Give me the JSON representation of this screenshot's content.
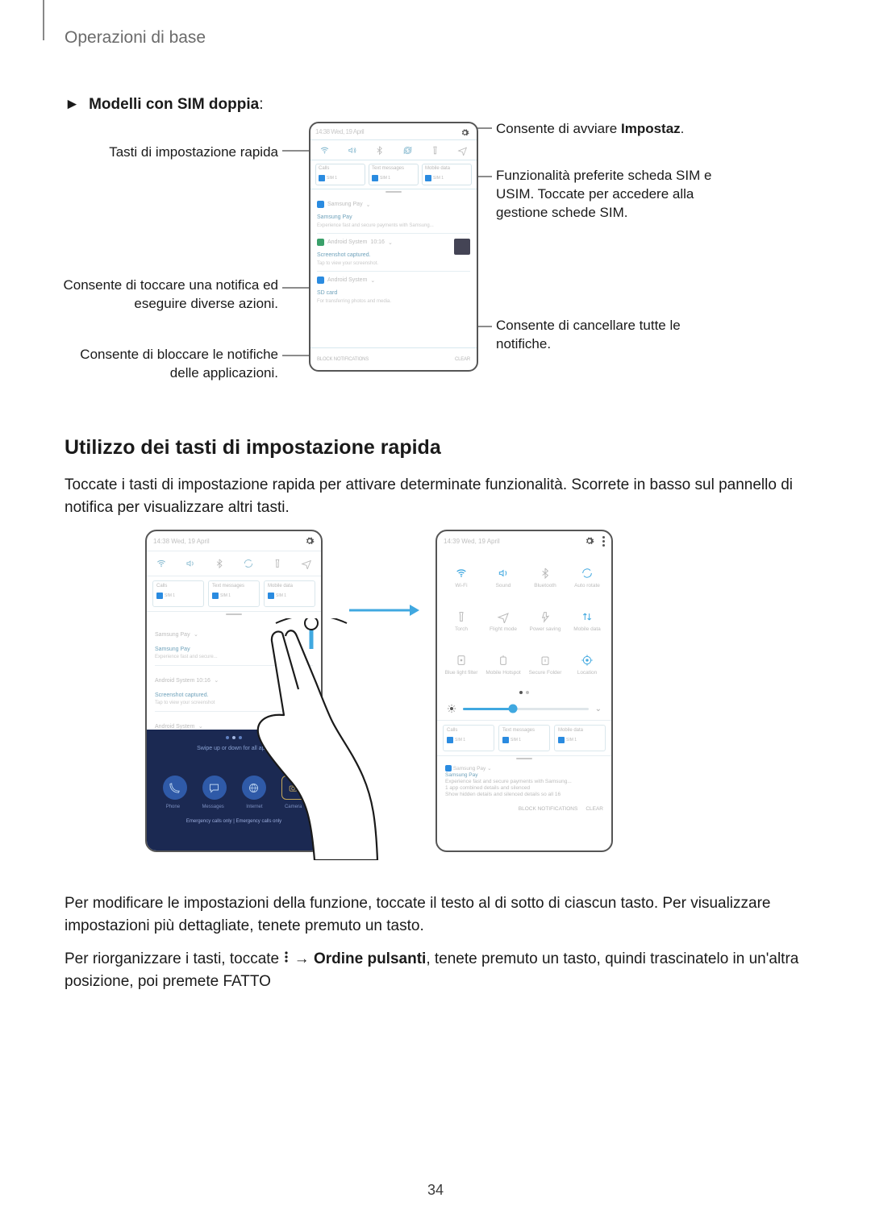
{
  "header": "Operazioni di base",
  "subhead_marker": "►",
  "subhead_bold": "Modelli con SIM doppia",
  "subhead_colon": ":",
  "diagram1": {
    "callouts": {
      "qs_keys": "Tasti di impostazione rapida",
      "tap_notif_1": "Consente di toccare una notifica ed",
      "tap_notif_2": "eseguire diverse azioni.",
      "block_1": "Consente di bloccare le notifiche",
      "block_2": "delle applicazioni.",
      "start_settings_1": "Consente di avviare ",
      "start_settings_bold": "Impostaz",
      "start_settings_dot": ".",
      "pref_sim_1": "Funzionalità preferite scheda SIM e",
      "pref_sim_2": "USIM. Toccate per accedere alla",
      "pref_sim_3": "gestione schede SIM.",
      "clear_1": "Consente di cancellare tutte le",
      "clear_2": "notifiche."
    },
    "phone": {
      "time": "14:38",
      "date": "Wed, 19 April",
      "sim": [
        {
          "label": "Calls",
          "sub": "SIM 1"
        },
        {
          "label": "Text messages",
          "sub": "SIM 1"
        },
        {
          "label": "Mobile data",
          "sub": "SIM 1"
        }
      ],
      "notifs": [
        {
          "app": "Samsung Pay",
          "title": "Samsung Pay",
          "sub": "Experience fast and secure payments with Samsung..."
        },
        {
          "app": "Android System",
          "title": "Screenshot captured.",
          "sub": "Tap to view your screenshot."
        },
        {
          "app": "Android System",
          "title": "SD card",
          "sub": "For transferring photos and media."
        }
      ],
      "footer_left": "BLOCK NOTIFICATIONS",
      "footer_right": "CLEAR"
    }
  },
  "h2": "Utilizzo dei tasti di impostazione rapida",
  "p1": "Toccate i tasti di impostazione rapida per attivare determinate funzionalità. Scorrete in basso sul pannello di notifica per visualizzare altri tasti.",
  "diagram2": {
    "left_phone": {
      "time": "14:38",
      "date": "Wed, 19 April",
      "sim": [
        {
          "label": "Calls",
          "sub": "SIM 1"
        },
        {
          "label": "Text messages",
          "sub": "SIM 1"
        },
        {
          "label": "Mobile data",
          "sub": "SIM 1"
        }
      ],
      "notif1_app": "Samsung Pay",
      "notif1_title": "Samsung Pay",
      "notif1_sub": "Experience fast and secure...",
      "notif2_title": "Screenshot captured.",
      "notif2_sub": "Tap to view your screenshot",
      "notif3_title": "SD card",
      "notif3_sub": "For transferring photos and media",
      "footer": "BLOCK NOTIFICATIONS",
      "msg": "Swipe up or down for all apps",
      "apps": [
        "Phone",
        "Messages",
        "Internet",
        "Camera"
      ],
      "startbar": "Emergency calls only | Emergency calls only"
    },
    "right_phone": {
      "time": "14:39",
      "date": "Wed, 19 April",
      "grid": [
        {
          "label": "Wi-Fi",
          "icon": "wifi",
          "color": "#40a8e0"
        },
        {
          "label": "Sound",
          "icon": "sound",
          "color": "#40a8e0"
        },
        {
          "label": "Bluetooth",
          "icon": "bt",
          "color": "#b8b8b8"
        },
        {
          "label": "Auto rotate",
          "icon": "rotate",
          "color": "#40a8e0"
        },
        {
          "label": "Torch",
          "icon": "torch",
          "color": "#b8b8b8"
        },
        {
          "label": "Flight mode",
          "icon": "plane",
          "color": "#b8b8b8"
        },
        {
          "label": "Power saving",
          "icon": "power",
          "color": "#b8b8b8"
        },
        {
          "label": "Mobile data",
          "icon": "data",
          "color": "#40a8e0"
        },
        {
          "label": "Blue light filter",
          "icon": "blf",
          "color": "#b8b8b8"
        },
        {
          "label": "Mobile Hotspot",
          "icon": "hotspot",
          "color": "#b8b8b8"
        },
        {
          "label": "Secure Folder",
          "icon": "secure",
          "color": "#b8b8b8"
        },
        {
          "label": "Location",
          "icon": "location",
          "color": "#40a8e0"
        }
      ],
      "sim": [
        {
          "label": "Calls",
          "sub": "SIM 1"
        },
        {
          "label": "Text messages",
          "sub": "SIM 1"
        },
        {
          "label": "Mobile data",
          "sub": "SIM 1"
        }
      ],
      "notif_app": "Samsung Pay",
      "notif_l1": "Samsung Pay",
      "notif_l2": "Experience fast and secure payments with Samsung...",
      "notif_l3": "1 app combined details and silenced",
      "notif_l4": "Show hidden details and silenced details so all 16",
      "footer_left": "BLOCK NOTIFICATIONS",
      "footer_right": "CLEAR"
    }
  },
  "p2_a": "Per modificare le impostazioni della funzione, toccate il testo al di sotto di ciascun tasto. Per visualizzare impostazioni più dettagliate, tenete premuto un tasto.",
  "p3_a": "Per riorganizzare i tasti, toccate ",
  "p3_arrow": " → ",
  "p3_bold": "Ordine pulsanti",
  "p3_c": ", tenete premuto un tasto, quindi trascinatelo in un'altra posizione, poi premete FATTO",
  "pagenum": "34",
  "colors": {
    "accent": "#40a8e0",
    "muted": "#b8b8b8"
  }
}
